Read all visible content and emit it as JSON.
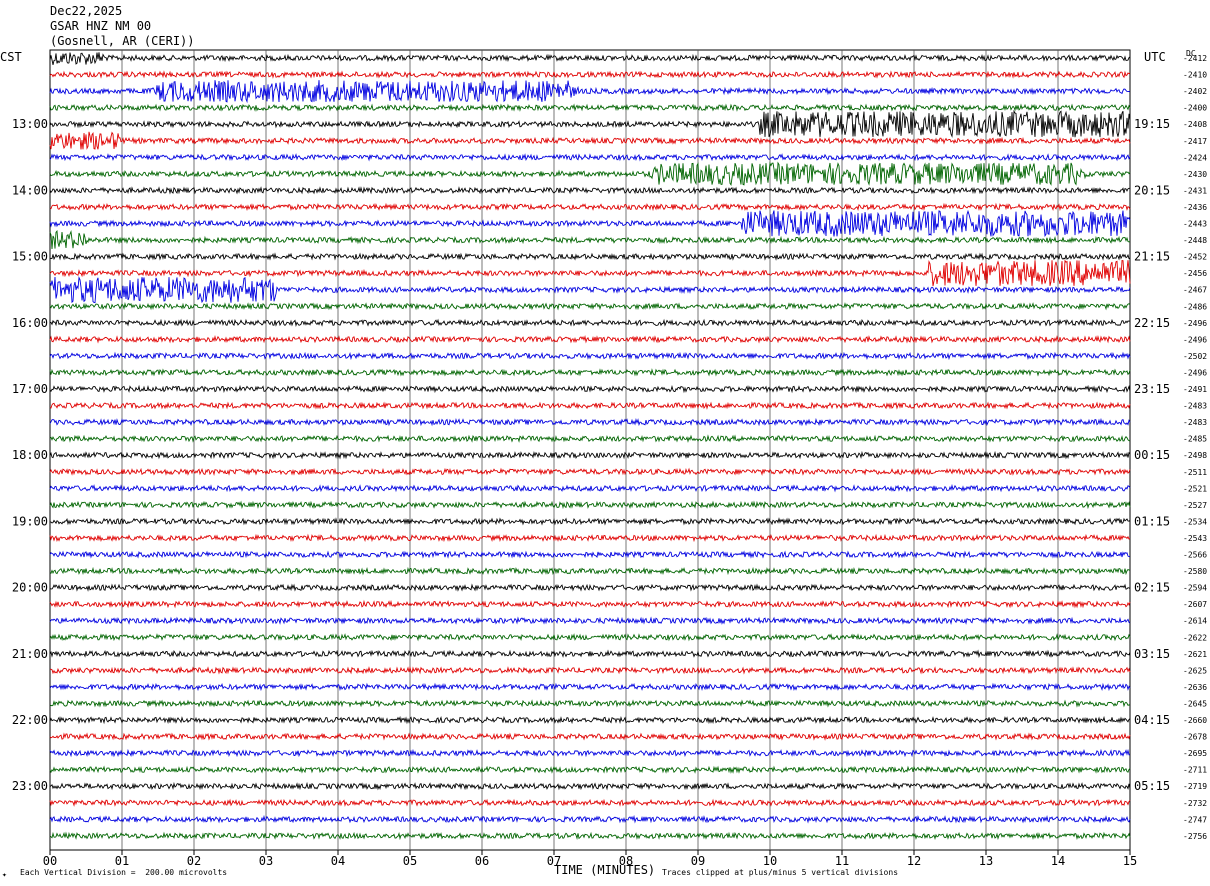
{
  "header": {
    "date": "Dec22,2025",
    "station": "GSAR HNZ NM 00",
    "location": "(Gosnell, AR (CERI))"
  },
  "left_zone": "CST",
  "right_zone": "UTC",
  "dc_label": "DC",
  "footer": {
    "scale_note": "Each Vertical Division =  200.00 microvolts",
    "time_label": "TIME (MINUTES)",
    "clip_note": "Traces clipped at plus/minus 5 vertical divisions"
  },
  "colors": [
    "#000000",
    "#e00000",
    "#0000e0",
    "#006400"
  ],
  "chart_data": {
    "type": "line",
    "title": "GSAR HNZ NM 00",
    "xlabel": "TIME (MINUTES)",
    "ylabel": "",
    "xlim": [
      0,
      15
    ],
    "x_ticks": [
      "00",
      "01",
      "02",
      "03",
      "04",
      "05",
      "06",
      "07",
      "08",
      "09",
      "10",
      "11",
      "12",
      "13",
      "14",
      "15"
    ],
    "rows_per_hour": 4,
    "row_count": 48,
    "left_hour_labels": [
      "13:00",
      "14:00",
      "15:00",
      "16:00",
      "17:00",
      "18:00",
      "19:00",
      "20:00",
      "21:00",
      "22:00",
      "23:00"
    ],
    "right_hour_labels": [
      "19:15",
      "20:15",
      "21:15",
      "22:15",
      "23:15",
      "00:15",
      "01:15",
      "02:15",
      "03:15",
      "04:15",
      "05:15"
    ],
    "dc_offsets": [
      "2412",
      "2410",
      "2402",
      "2400",
      "2408",
      "2417",
      "2424",
      "2430",
      "2431",
      "2436",
      "2443",
      "2448",
      "2452",
      "2456",
      "2467",
      "2486",
      "2496",
      "2496",
      "2502",
      "2496",
      "2491",
      "2483",
      "2483",
      "2485",
      "2498",
      "2511",
      "2521",
      "2527",
      "2534",
      "2543",
      "2566",
      "2580",
      "2594",
      "2607",
      "2614",
      "2622",
      "2621",
      "2625",
      "2636",
      "2645",
      "2660",
      "2678",
      "2695",
      "2711",
      "2719",
      "2732",
      "2747",
      "2756"
    ],
    "bursts": [
      {
        "row": 0,
        "start_min": 0.0,
        "end_min": 0.75,
        "amp": 7
      },
      {
        "row": 2,
        "start_min": 1.4,
        "end_min": 7.35,
        "amp": 11
      },
      {
        "row": 4,
        "start_min": 9.85,
        "end_min": 15.0,
        "amp": 13
      },
      {
        "row": 5,
        "start_min": 0.0,
        "end_min": 1.0,
        "amp": 9
      },
      {
        "row": 7,
        "start_min": 8.3,
        "end_min": 14.4,
        "amp": 11
      },
      {
        "row": 10,
        "start_min": 9.6,
        "end_min": 15.0,
        "amp": 13
      },
      {
        "row": 11,
        "start_min": 0.0,
        "end_min": 0.5,
        "amp": 9
      },
      {
        "row": 13,
        "start_min": 12.2,
        "end_min": 15.0,
        "amp": 13
      },
      {
        "row": 14,
        "start_min": 0.0,
        "end_min": 3.15,
        "amp": 13
      }
    ],
    "grid": true
  }
}
